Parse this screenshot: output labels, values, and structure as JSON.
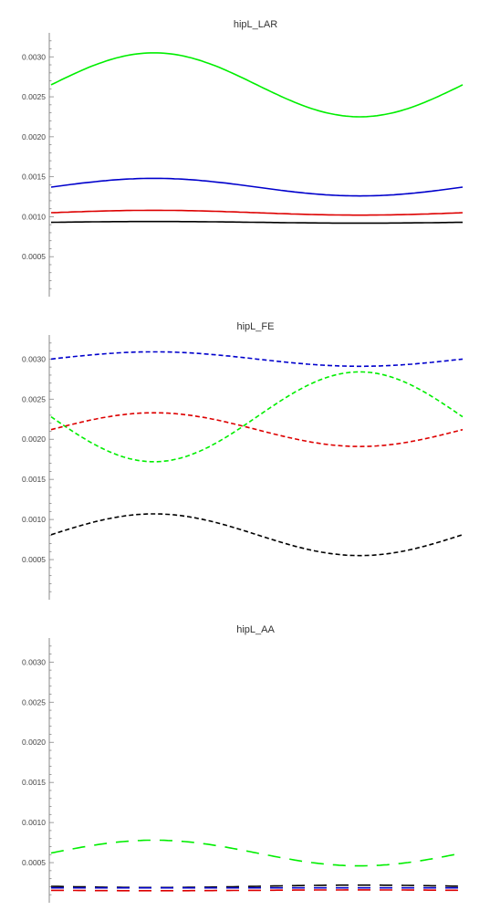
{
  "chart_data": [
    {
      "type": "line",
      "title": "hipL_LAR",
      "xlabel": "",
      "ylabel": "",
      "xlim": [
        0,
        1
      ],
      "ylim": [
        0.0,
        0.0033
      ],
      "yticks": [
        "0.0005",
        "0.0010",
        "0.0015",
        "0.0020",
        "0.0025",
        "0.0030"
      ],
      "ytick_values": [
        0.0005,
        0.001,
        0.0015,
        0.002,
        0.0025,
        0.003
      ],
      "grid": false,
      "line_style": "solid",
      "series": [
        {
          "color": "#00ee00",
          "base": 0.00265,
          "amp": 0.0004
        },
        {
          "color": "#0000cc",
          "base": 0.00137,
          "amp": 0.00011
        },
        {
          "color": "#dd0000",
          "base": 0.00105,
          "amp": 3e-05
        },
        {
          "color": "#000000",
          "base": 0.00093,
          "amp": 1e-05
        }
      ]
    },
    {
      "type": "line",
      "title": "hipL_FE",
      "xlabel": "",
      "ylabel": "",
      "xlim": [
        0,
        1
      ],
      "ylim": [
        0.0,
        0.0033
      ],
      "yticks": [
        "0.0005",
        "0.0010",
        "0.0015",
        "0.0020",
        "0.0025",
        "0.0030"
      ],
      "ytick_values": [
        0.0005,
        0.001,
        0.0015,
        0.002,
        0.0025,
        0.003
      ],
      "grid": false,
      "line_style": "short-dash",
      "series": [
        {
          "color": "#0000cc",
          "base": 0.003,
          "amp": 9e-05
        },
        {
          "color": "#00ee00",
          "base": 0.00228,
          "amp": -0.00056
        },
        {
          "color": "#dd0000",
          "base": 0.00212,
          "amp": 0.00021
        },
        {
          "color": "#000000",
          "base": 0.00081,
          "amp": 0.00026
        }
      ]
    },
    {
      "type": "line",
      "title": "hipL_AA",
      "xlabel": "",
      "ylabel": "",
      "xlim": [
        0,
        1
      ],
      "ylim": [
        0.0,
        0.0033
      ],
      "yticks": [
        "0.0005",
        "0.0010",
        "0.0015",
        "0.0020",
        "0.0025",
        "0.0030"
      ],
      "ytick_values": [
        0.0005,
        0.001,
        0.0015,
        0.002,
        0.0025,
        0.003
      ],
      "grid": false,
      "line_style": "long-dash",
      "series": [
        {
          "color": "#00ee00",
          "base": 0.00062,
          "amp": 0.00016
        },
        {
          "color": "#000000",
          "base": 0.000205,
          "amp": -1.5e-05
        },
        {
          "color": "#0000cc",
          "base": 0.000185,
          "amp": 0.0
        },
        {
          "color": "#dd0000",
          "base": 0.000155,
          "amp": -5e-06
        }
      ]
    }
  ]
}
